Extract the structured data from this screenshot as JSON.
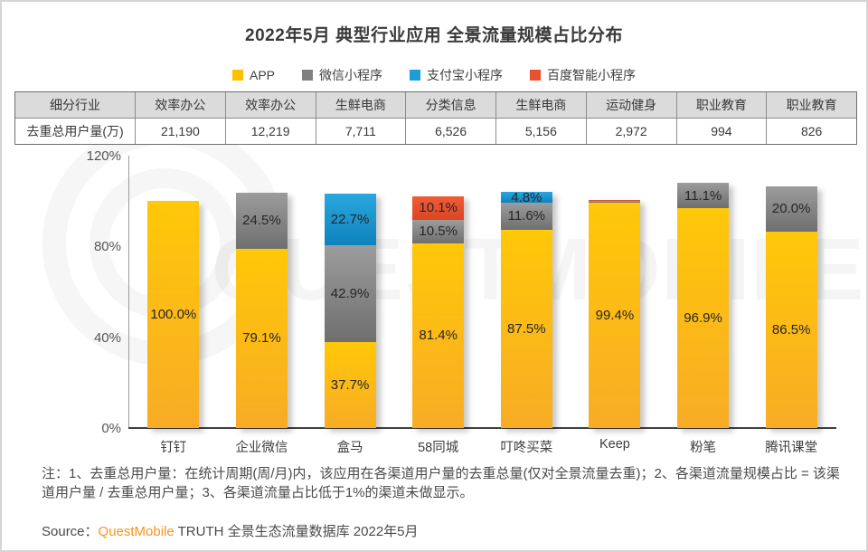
{
  "page": {
    "title": "2022年5月 典型行业应用 全景流量规模占比分布",
    "note": "注：1、去重总用户量：在统计周期(周/月)内，该应用在各渠道用户量的去重总量(仅对全景流量去重)；2、各渠道流量规模占比 = 该渠道用户量 / 去重总用户量；3、各渠道流量占比低于1%的渠道未做显示。",
    "source_prefix": "Source：",
    "source_brand": "QuestMobile",
    "source_suffix": " TRUTH 全景生态流量数据库 2022年5月"
  },
  "watermark": {
    "text": "QUESTMOBILE"
  },
  "legend": [
    {
      "label": "APP",
      "color": "#FFC000"
    },
    {
      "label": "微信小程序",
      "color": "#808080"
    },
    {
      "label": "支付宝小程序",
      "color": "#1E9CD7"
    },
    {
      "label": "百度智能小程序",
      "color": "#E8502E"
    }
  ],
  "table": {
    "rows": [
      {
        "header": "细分行业",
        "cells": [
          "效率办公",
          "效率办公",
          "生鲜电商",
          "分类信息",
          "生鲜电商",
          "运动健身",
          "职业教育",
          "职业教育"
        ]
      },
      {
        "header": "去重总用户量(万)",
        "cells": [
          "21,190",
          "12,219",
          "7,711",
          "6,526",
          "5,156",
          "2,972",
          "994",
          "826"
        ]
      }
    ]
  },
  "chart_data": {
    "type": "bar",
    "stacked": true,
    "title": "2022年5月 典型行业应用 全景流量规模占比分布",
    "categories": [
      "钉钉",
      "企业微信",
      "盒马",
      "58同城",
      "叮咚买菜",
      "Keep",
      "粉笔",
      "腾讯课堂"
    ],
    "series": [
      {
        "key": "app",
        "name": "APP",
        "color": "#FFC000",
        "values": [
          100.0,
          79.1,
          37.7,
          81.4,
          87.5,
          99.4,
          96.9,
          86.5
        ],
        "labels": [
          "100.0%",
          "79.1%",
          "37.7%",
          "81.4%",
          "87.5%",
          "99.4%",
          "96.9%",
          "86.5%"
        ]
      },
      {
        "key": "wechat",
        "name": "微信小程序",
        "color": "#808080",
        "values": [
          0,
          24.5,
          42.9,
          10.5,
          11.6,
          0.5,
          11.1,
          20.0
        ],
        "labels": [
          "",
          "24.5%",
          "42.9%",
          "10.5%",
          "11.6%",
          "",
          "11.1%",
          "20.0%"
        ]
      },
      {
        "key": "alipay",
        "name": "支付宝小程序",
        "color": "#1E9CD7",
        "values": [
          0,
          0,
          22.7,
          0,
          4.8,
          0,
          0,
          0
        ],
        "labels": [
          "",
          "",
          "22.7%",
          "",
          "4.8%",
          "",
          "",
          ""
        ]
      },
      {
        "key": "baidu",
        "name": "百度智能小程序",
        "color": "#E8502E",
        "values": [
          0,
          0,
          0,
          10.1,
          0,
          0.5,
          0,
          0
        ],
        "labels": [
          "",
          "",
          "",
          "10.1%",
          "",
          "",
          "",
          ""
        ]
      }
    ],
    "ylabel": "",
    "xlabel": "",
    "ylim": [
      0,
      120
    ],
    "yticks": [
      {
        "value": 0,
        "label": "0%"
      },
      {
        "value": 40,
        "label": "40%"
      },
      {
        "value": 80,
        "label": "80%"
      },
      {
        "value": 120,
        "label": "120%"
      }
    ],
    "grid": false,
    "legend_position": "top"
  }
}
